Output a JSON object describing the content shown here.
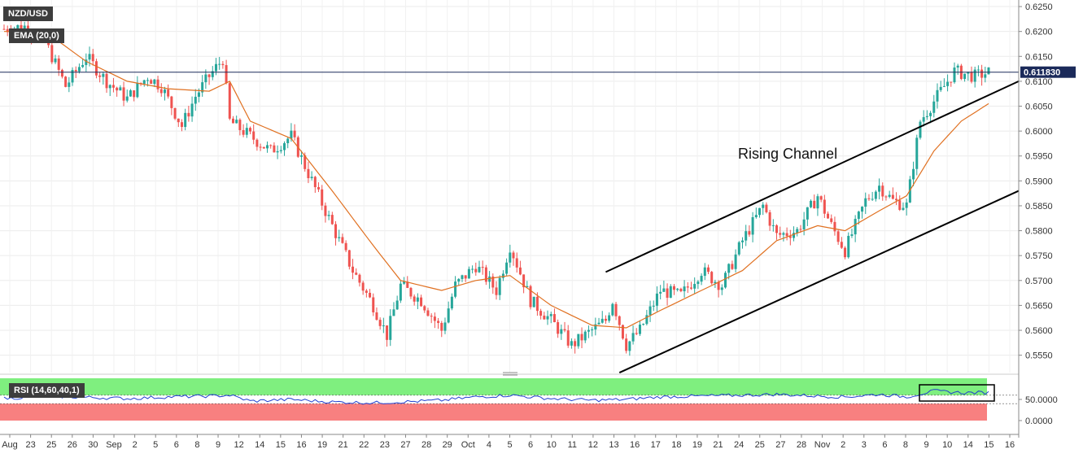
{
  "chart_data": [
    {
      "type": "candlestick",
      "title": "NZD/USD",
      "indicator_label": "EMA (20,0)",
      "current_price_label": "0.611830",
      "current_price": 0.61183,
      "annotation": "Rising Channel",
      "ylim": [
        0.552,
        0.6255
      ],
      "y_ticks": [
        "0.6250",
        "0.6200",
        "0.6150",
        "0.6100",
        "0.6050",
        "0.6000",
        "0.5950",
        "0.5900",
        "0.5850",
        "0.5800",
        "0.5750",
        "0.5700",
        "0.5650",
        "0.5600",
        "0.5550"
      ],
      "x_tick_labels": [
        "Aug",
        "23",
        "25",
        "26",
        "30",
        "Sep",
        "2",
        "5",
        "6",
        "8",
        "9",
        "12",
        "14",
        "15",
        "16",
        "19",
        "21",
        "22",
        "23",
        "27",
        "28",
        "29",
        "Oct",
        "4",
        "5",
        "6",
        "10",
        "11",
        "12",
        "13",
        "16",
        "17",
        "18",
        "19",
        "21",
        "24",
        "25",
        "27",
        "28",
        "Nov",
        "2",
        "3",
        "6",
        "8",
        "9",
        "10",
        "14",
        "15",
        "16"
      ],
      "price_path": [
        [
          0,
          0.6205
        ],
        [
          3,
          0.621
        ],
        [
          6,
          0.618
        ],
        [
          9,
          0.609
        ],
        [
          12,
          0.615
        ],
        [
          15,
          0.61
        ],
        [
          18,
          0.6065
        ],
        [
          21,
          0.611
        ],
        [
          23,
          0.609
        ],
        [
          26,
          0.601
        ],
        [
          28,
          0.607
        ],
        [
          30,
          0.611
        ],
        [
          32,
          0.6145
        ],
        [
          33,
          0.602
        ],
        [
          36,
          0.599
        ],
        [
          39,
          0.596
        ],
        [
          42,
          0.599
        ],
        [
          45,
          0.59
        ],
        [
          48,
          0.581
        ],
        [
          51,
          0.572
        ],
        [
          54,
          0.565
        ],
        [
          56,
          0.559
        ],
        [
          58,
          0.569
        ],
        [
          61,
          0.566
        ],
        [
          64,
          0.56
        ],
        [
          66,
          0.569
        ],
        [
          69,
          0.573
        ],
        [
          72,
          0.568
        ],
        [
          74,
          0.577
        ],
        [
          77,
          0.566
        ],
        [
          80,
          0.562
        ],
        [
          83,
          0.557
        ],
        [
          86,
          0.56
        ],
        [
          88,
          0.562
        ],
        [
          89,
          0.566
        ],
        [
          91,
          0.557
        ],
        [
          93,
          0.56
        ],
        [
          96,
          0.568
        ],
        [
          99,
          0.567
        ],
        [
          102,
          0.572
        ],
        [
          105,
          0.569
        ],
        [
          108,
          0.578
        ],
        [
          111,
          0.585
        ],
        [
          113,
          0.579
        ],
        [
          116,
          0.58
        ],
        [
          119,
          0.587
        ],
        [
          121,
          0.581
        ],
        [
          123,
          0.576
        ],
        [
          126,
          0.586
        ],
        [
          128,
          0.589
        ],
        [
          130,
          0.586
        ],
        [
          132,
          0.585
        ],
        [
          134,
          0.602
        ],
        [
          137,
          0.608
        ],
        [
          139,
          0.612
        ],
        [
          142,
          0.611
        ],
        [
          144,
          0.6118
        ]
      ],
      "ema_path": [
        [
          0,
          0.62
        ],
        [
          6,
          0.62
        ],
        [
          12,
          0.614
        ],
        [
          18,
          0.61
        ],
        [
          24,
          0.6085
        ],
        [
          30,
          0.608
        ],
        [
          33,
          0.61
        ],
        [
          36,
          0.602
        ],
        [
          42,
          0.5985
        ],
        [
          48,
          0.588
        ],
        [
          54,
          0.577
        ],
        [
          58,
          0.57
        ],
        [
          64,
          0.568
        ],
        [
          69,
          0.57
        ],
        [
          74,
          0.571
        ],
        [
          80,
          0.565
        ],
        [
          86,
          0.561
        ],
        [
          91,
          0.5605
        ],
        [
          96,
          0.564
        ],
        [
          102,
          0.568
        ],
        [
          108,
          0.572
        ],
        [
          113,
          0.578
        ],
        [
          119,
          0.581
        ],
        [
          123,
          0.58
        ],
        [
          128,
          0.584
        ],
        [
          132,
          0.587
        ],
        [
          136,
          0.596
        ],
        [
          140,
          0.602
        ],
        [
          144,
          0.6055
        ]
      ],
      "channel": {
        "upper": [
          [
            88,
            0.5717
          ],
          [
            144,
            0.61
          ]
        ],
        "lower": [
          [
            90,
            0.5515
          ],
          [
            144,
            0.588
          ]
        ]
      },
      "current_price_line": 0.61183
    },
    {
      "type": "line",
      "title": "RSI (14,60,40,1)",
      "ylim": [
        0,
        100
      ],
      "y_ticks": [
        "50.0000",
        "0.0000"
      ],
      "upper_band": 60,
      "lower_band": 40,
      "band_colors": {
        "upper": "#7fef7f",
        "lower": "#f88080"
      },
      "rsi_path": [
        [
          0,
          52
        ],
        [
          6,
          58
        ],
        [
          12,
          55
        ],
        [
          18,
          52
        ],
        [
          24,
          56
        ],
        [
          30,
          58
        ],
        [
          33,
          60
        ],
        [
          36,
          46
        ],
        [
          42,
          50
        ],
        [
          48,
          44
        ],
        [
          54,
          42
        ],
        [
          58,
          44
        ],
        [
          64,
          48
        ],
        [
          69,
          56
        ],
        [
          74,
          60
        ],
        [
          80,
          52
        ],
        [
          86,
          48
        ],
        [
          91,
          50
        ],
        [
          96,
          56
        ],
        [
          102,
          58
        ],
        [
          108,
          60
        ],
        [
          113,
          62
        ],
        [
          119,
          58
        ],
        [
          123,
          56
        ],
        [
          128,
          62
        ],
        [
          132,
          56
        ],
        [
          136,
          70
        ],
        [
          140,
          66
        ],
        [
          144,
          66
        ]
      ]
    }
  ],
  "colors": {
    "up": "#26a69a",
    "down": "#ef5350",
    "ema": "#e07020",
    "rsi": "#1f3fd0",
    "price_line": "#1b2a5a",
    "axis": "#888888",
    "grid": "#ebebeb",
    "label_bg": "#3d3d3d"
  }
}
